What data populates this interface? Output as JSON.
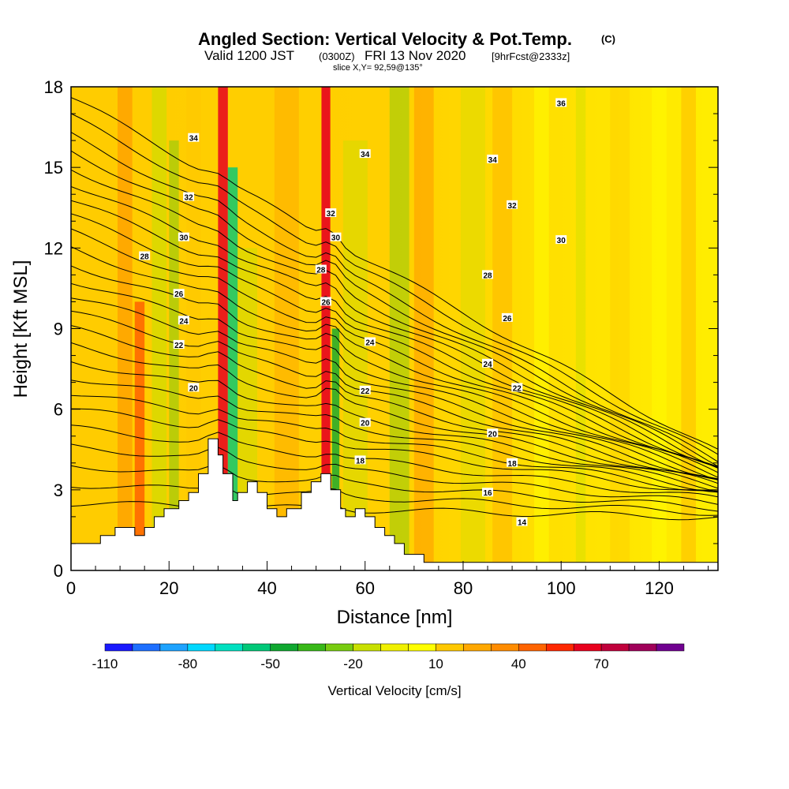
{
  "title": {
    "main": "Angled Section: Vertical Velocity & Pot.Temp.",
    "copyright": "(C)",
    "valid_a": "Valid 1200 JST",
    "valid_b": "(0300Z)",
    "valid_c": "FRI 13 Nov 2020",
    "valid_d": "[9hrFcst@2333z]",
    "slice": "slice X,Y= 92,59@135°"
  },
  "chart_data": {
    "type": "heatmap",
    "xlabel": "Distance [nm]",
    "ylabel": "Height [Kft MSL]",
    "xlim": [
      0,
      132
    ],
    "ylim": [
      0,
      18
    ],
    "x_ticks": [
      0,
      20,
      40,
      60,
      80,
      100,
      120
    ],
    "y_ticks": [
      0,
      3,
      6,
      9,
      12,
      15,
      18
    ],
    "colorbar": {
      "label": "Vertical Velocity [cm/s]",
      "tick_labels": [
        "-110",
        "-80",
        "-50",
        "-20",
        "10",
        "40",
        "70"
      ],
      "tick_values": [
        -110,
        -80,
        -50,
        -20,
        10,
        40,
        70
      ],
      "levels": [
        -110,
        -100,
        -90,
        -80,
        -70,
        -60,
        -50,
        -40,
        -30,
        -20,
        -10,
        0,
        10,
        20,
        30,
        40,
        50,
        60,
        70,
        80,
        90
      ],
      "colors": [
        "#1a1aff",
        "#1e6fff",
        "#1ea3ff",
        "#00d8ff",
        "#00e0c0",
        "#00c878",
        "#10a830",
        "#38b818",
        "#78cc10",
        "#c8e000",
        "#f0f000",
        "#ffff00",
        "#ffc800",
        "#ffa800",
        "#ff8c00",
        "#ff6400",
        "#ff2800",
        "#e8001e",
        "#c0003c",
        "#a0005a",
        "#700090"
      ]
    },
    "terrain": [
      [
        0,
        1.0
      ],
      [
        6,
        1.0
      ],
      [
        6,
        1.3
      ],
      [
        9,
        1.3
      ],
      [
        9,
        1.6
      ],
      [
        13,
        1.6
      ],
      [
        13,
        1.3
      ],
      [
        15,
        1.3
      ],
      [
        15,
        1.6
      ],
      [
        17,
        1.6
      ],
      [
        17,
        2.0
      ],
      [
        19,
        2.0
      ],
      [
        19,
        2.3
      ],
      [
        22,
        2.3
      ],
      [
        22,
        2.6
      ],
      [
        24,
        2.6
      ],
      [
        24,
        2.9
      ],
      [
        26,
        2.9
      ],
      [
        26,
        3.6
      ],
      [
        28,
        3.6
      ],
      [
        28,
        4.9
      ],
      [
        30,
        4.9
      ],
      [
        30,
        4.3
      ],
      [
        31,
        4.3
      ],
      [
        31,
        3.6
      ],
      [
        33,
        3.6
      ],
      [
        33,
        2.6
      ],
      [
        34,
        2.6
      ],
      [
        34,
        2.9
      ],
      [
        36,
        2.9
      ],
      [
        36,
        3.3
      ],
      [
        38,
        3.3
      ],
      [
        38,
        2.9
      ],
      [
        40,
        2.9
      ],
      [
        40,
        2.3
      ],
      [
        42,
        2.3
      ],
      [
        42,
        2.0
      ],
      [
        44,
        2.0
      ],
      [
        44,
        2.3
      ],
      [
        47,
        2.3
      ],
      [
        47,
        2.9
      ],
      [
        49,
        2.9
      ],
      [
        49,
        3.3
      ],
      [
        51,
        3.3
      ],
      [
        51,
        3.6
      ],
      [
        53,
        3.6
      ],
      [
        53,
        3.0
      ],
      [
        55,
        3.0
      ],
      [
        55,
        2.3
      ],
      [
        56,
        2.3
      ],
      [
        56,
        2.0
      ],
      [
        58,
        2.0
      ],
      [
        58,
        2.3
      ],
      [
        60,
        2.3
      ],
      [
        60,
        2.0
      ],
      [
        62,
        2.0
      ],
      [
        62,
        1.6
      ],
      [
        64,
        1.6
      ],
      [
        64,
        1.3
      ],
      [
        66,
        1.3
      ],
      [
        66,
        1.0
      ],
      [
        68,
        1.0
      ],
      [
        68,
        0.6
      ],
      [
        72,
        0.6
      ],
      [
        72,
        0.3
      ],
      [
        132,
        0.3
      ]
    ],
    "theta_contour_labels": [
      {
        "text": "36",
        "x": 100,
        "y": 17.4
      },
      {
        "text": "34",
        "x": 25,
        "y": 16.1
      },
      {
        "text": "34",
        "x": 60,
        "y": 15.5
      },
      {
        "text": "34",
        "x": 86,
        "y": 15.3
      },
      {
        "text": "32",
        "x": 24,
        "y": 13.9
      },
      {
        "text": "32",
        "x": 53,
        "y": 13.3
      },
      {
        "text": "32",
        "x": 90,
        "y": 13.6
      },
      {
        "text": "30",
        "x": 23,
        "y": 12.4
      },
      {
        "text": "30",
        "x": 54,
        "y": 12.4
      },
      {
        "text": "30",
        "x": 100,
        "y": 12.3
      },
      {
        "text": "28",
        "x": 15,
        "y": 11.7
      },
      {
        "text": "28",
        "x": 51,
        "y": 11.2
      },
      {
        "text": "28",
        "x": 85,
        "y": 11.0
      },
      {
        "text": "26",
        "x": 22,
        "y": 10.3
      },
      {
        "text": "26",
        "x": 52,
        "y": 10.0
      },
      {
        "text": "26",
        "x": 89,
        "y": 9.4
      },
      {
        "text": "24",
        "x": 23,
        "y": 9.3
      },
      {
        "text": "24",
        "x": 61,
        "y": 8.5
      },
      {
        "text": "24",
        "x": 85,
        "y": 7.7
      },
      {
        "text": "22",
        "x": 22,
        "y": 8.4
      },
      {
        "text": "22",
        "x": 60,
        "y": 6.7
      },
      {
        "text": "22",
        "x": 91,
        "y": 6.8
      },
      {
        "text": "20",
        "x": 25,
        "y": 6.8
      },
      {
        "text": "20",
        "x": 60,
        "y": 5.5
      },
      {
        "text": "20",
        "x": 86,
        "y": 5.1
      },
      {
        "text": "18",
        "x": 59,
        "y": 4.1
      },
      {
        "text": "18",
        "x": 90,
        "y": 4.0
      },
      {
        "text": "16",
        "x": 85,
        "y": 2.9
      },
      {
        "text": "14",
        "x": 92,
        "y": 1.8
      }
    ]
  }
}
